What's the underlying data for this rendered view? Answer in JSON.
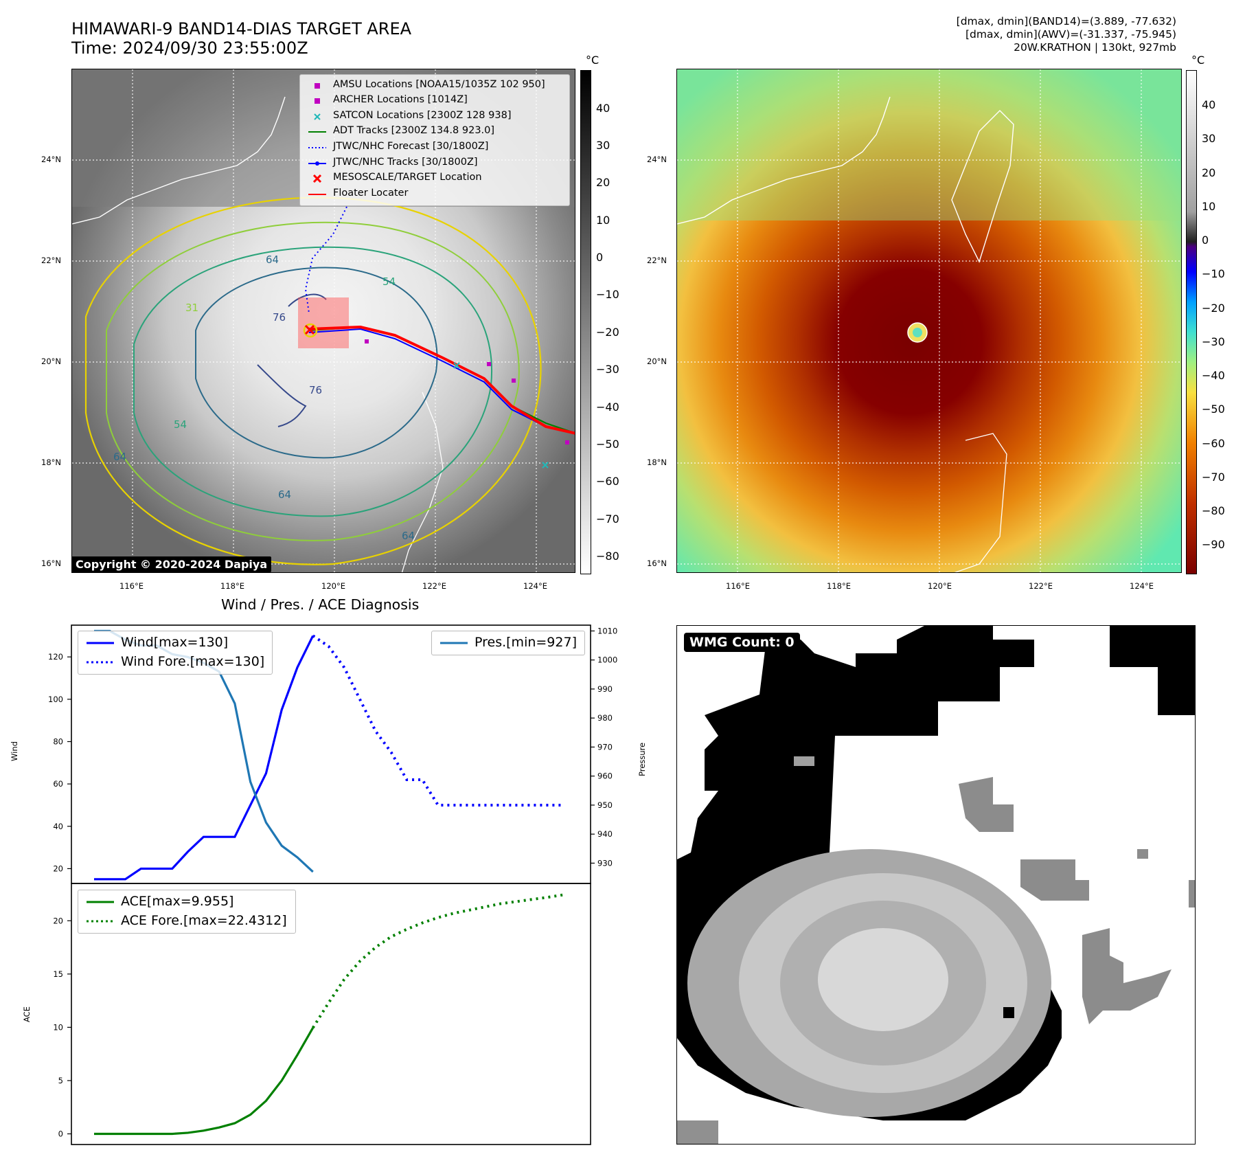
{
  "header": {
    "title_line1": "HIMAWARI-9 BAND14-DIAS TARGET AREA",
    "title_line2": "Time: 2024/09/30 23:55:00Z",
    "info_line1": "[dmax, dmin](BAND14)=(3.889, -77.632)",
    "info_line2": "[dmax, dmin](AWV)=(-31.337, -75.945)",
    "info_line3": "20W.KRATHON | 130kt, 927mb"
  },
  "maps": {
    "lat_labels": [
      "24°N",
      "22°N",
      "20°N",
      "18°N",
      "16°N"
    ],
    "lon_labels": [
      "116°E",
      "118°E",
      "120°E",
      "122°E",
      "124°E"
    ],
    "contour_labels": [
      "64",
      "54",
      "31",
      "76",
      "76",
      "54",
      "64",
      "64",
      "64"
    ],
    "copyright": "Copyright © 2020-2024 Dapiya",
    "legend": [
      {
        "label": "AMSU Locations [NOAA15/1035Z 102 950]",
        "color": "#c000c0",
        "symbol": "square"
      },
      {
        "label": "ARCHER Locations [1014Z]",
        "color": "#c000c0",
        "symbol": "square"
      },
      {
        "label": "SATCON Locations [2300Z 128 938]",
        "color": "#20b8b8",
        "symbol": "x"
      },
      {
        "label": "ADT Tracks [2300Z 134.8 923.0]",
        "color": "#008000",
        "symbol": "line"
      },
      {
        "label": "JTWC/NHC Forecast [30/1800Z]",
        "color": "#0000ff",
        "symbol": "dotted"
      },
      {
        "label": "JTWC/NHC Tracks [30/1800Z]",
        "color": "#0000ff",
        "symbol": "line-dot"
      },
      {
        "label": "MESOSCALE/TARGET Location",
        "color": "#ff0000",
        "symbol": "x-bold"
      },
      {
        "label": "Floater Locater",
        "color": "#ff0000",
        "symbol": "line"
      }
    ],
    "colorbar_unit": "°C",
    "left_colorbar_ticks": [
      "40",
      "30",
      "20",
      "10",
      "0",
      "−10",
      "−20",
      "−30",
      "−40",
      "−50",
      "−60",
      "−70",
      "−80"
    ],
    "right_colorbar_ticks": [
      "40",
      "30",
      "20",
      "10",
      "0",
      "−10",
      "−20",
      "−30",
      "−40",
      "−50",
      "−60",
      "−70",
      "−80",
      "−90"
    ]
  },
  "diagnosis": {
    "title": "Wind / Pres. / ACE Diagnosis",
    "wind_ylabel": "Wind",
    "pres_ylabel": "Pressure",
    "ace_ylabel": "ACE",
    "wind_legend": [
      "Wind[max=130]",
      "Wind Fore.[max=130]"
    ],
    "pres_legend": [
      "Pres.[min=927]"
    ],
    "ace_legend": [
      "ACE[max=9.955]",
      "ACE Fore.[max=22.4312]"
    ],
    "wmg_badge": "WMG Count: 0"
  },
  "chart_data": [
    {
      "type": "line",
      "name_panel": "wind-pressure",
      "ylabel": "Wind",
      "ylim": [
        13,
        135
      ],
      "yticks": [
        20,
        40,
        60,
        80,
        100,
        120
      ],
      "y2label": "Pressure",
      "y2lim": [
        923,
        1012
      ],
      "y2ticks": [
        930,
        940,
        950,
        960,
        970,
        980,
        990,
        1000,
        1010
      ],
      "series": [
        {
          "name": "Wind[max=130]",
          "color": "#0000ff",
          "style": "solid",
          "x": [
            0,
            1,
            2,
            3,
            4,
            5,
            6,
            7,
            8,
            9,
            10,
            11,
            12,
            13,
            14
          ],
          "values": [
            15,
            15,
            15,
            20,
            20,
            20,
            28,
            35,
            35,
            35,
            50,
            65,
            95,
            115,
            130
          ]
        },
        {
          "name": "Wind Fore.[max=130]",
          "color": "#0000ff",
          "style": "dotted",
          "x": [
            14,
            15,
            16,
            17,
            18,
            19,
            20,
            21,
            22,
            23,
            24,
            25,
            26,
            27,
            28,
            29,
            30
          ],
          "values": [
            130,
            125,
            115,
            100,
            85,
            75,
            62,
            62,
            50,
            50,
            50,
            50,
            50,
            50,
            50,
            50,
            50
          ]
        },
        {
          "name": "Pres.[min=927]",
          "color": "#1f77b4",
          "style": "solid",
          "axis": "right",
          "x": [
            0,
            1,
            2,
            3,
            4,
            5,
            6,
            7,
            8,
            9,
            10,
            11,
            12,
            13,
            14
          ],
          "values": [
            1010,
            1010,
            1007,
            1005,
            1005,
            1002,
            1001,
            999,
            996,
            985,
            958,
            944,
            936,
            932,
            927
          ]
        }
      ]
    },
    {
      "type": "line",
      "name_panel": "ace",
      "ylabel": "ACE",
      "ylim": [
        -1,
        23.5
      ],
      "yticks": [
        0,
        5,
        10,
        15,
        20
      ],
      "series": [
        {
          "name": "ACE[max=9.955]",
          "color": "#008000",
          "style": "solid",
          "x": [
            0,
            1,
            2,
            3,
            4,
            5,
            6,
            7,
            8,
            9,
            10,
            11,
            12,
            13,
            14
          ],
          "values": [
            0,
            0,
            0,
            0,
            0,
            0,
            0.1,
            0.3,
            0.6,
            1.0,
            1.8,
            3.1,
            5.0,
            7.4,
            9.955
          ]
        },
        {
          "name": "ACE Fore.[max=22.4312]",
          "color": "#008000",
          "style": "dotted",
          "x": [
            14,
            15,
            16,
            17,
            18,
            19,
            20,
            21,
            22,
            23,
            24,
            25,
            26,
            27,
            28,
            29,
            30
          ],
          "values": [
            9.955,
            12.3,
            14.5,
            16.2,
            17.5,
            18.5,
            19.2,
            19.8,
            20.3,
            20.7,
            21.0,
            21.3,
            21.6,
            21.8,
            22.0,
            22.2,
            22.4312
          ]
        }
      ]
    }
  ]
}
